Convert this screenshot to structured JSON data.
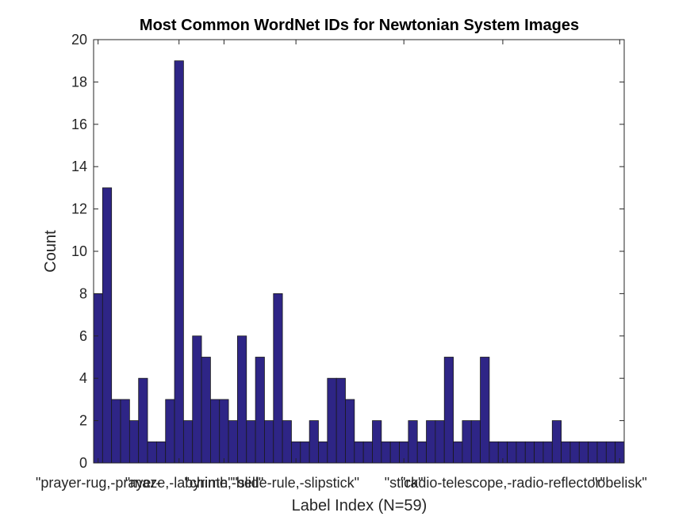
{
  "chart_data": {
    "type": "bar",
    "title": "Most Common WordNet IDs for Newtonian System Images",
    "xlabel": "Label Index (N=59)",
    "ylabel": "Count",
    "ylim": [
      0,
      20
    ],
    "yticks": [
      0,
      2,
      4,
      6,
      8,
      10,
      12,
      14,
      16,
      18,
      20
    ],
    "xlim": [
      0.5,
      59.5
    ],
    "grid": false,
    "legend": "none",
    "bar_color": "#2E2586",
    "edge_color": "#1a1a1a",
    "xtick_positions": [
      1,
      10,
      15,
      23,
      35,
      46,
      59
    ],
    "xtick_labels": [
      "\"prayer-rug,-prayer-",
      "\"maze,-labyrinth\"",
      "\"chime,-bell\"",
      "\"slide-rule,-slipstick\"",
      "\"stick\"",
      "\"radio-telescope,-radio-reflector\"",
      "\"obelisk\""
    ],
    "values": [
      8,
      13,
      3,
      3,
      2,
      4,
      1,
      1,
      3,
      19,
      2,
      6,
      5,
      3,
      3,
      2,
      6,
      2,
      5,
      2,
      8,
      2,
      1,
      1,
      2,
      1,
      4,
      4,
      3,
      1,
      1,
      2,
      1,
      1,
      1,
      2,
      1,
      2,
      2,
      5,
      1,
      2,
      2,
      5,
      1,
      1,
      1,
      1,
      1,
      1,
      1,
      2,
      1,
      1,
      1,
      1,
      1,
      1,
      1
    ]
  }
}
